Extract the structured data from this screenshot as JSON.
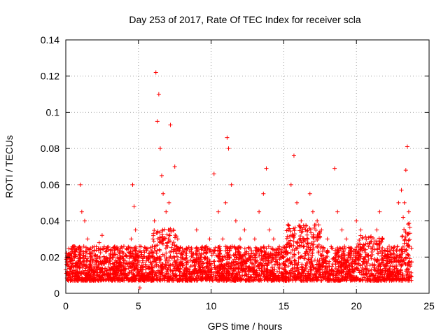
{
  "chart_data": {
    "type": "scatter",
    "title": "Day 253 of 2017, Rate Of TEC Index for receiver scla",
    "xlabel": "GPS time / hours",
    "ylabel": "ROTI / TECUs",
    "xlim": [
      0,
      25
    ],
    "ylim": [
      0,
      0.14
    ],
    "xticks": [
      0,
      5,
      10,
      15,
      20,
      25
    ],
    "xtick_labels": [
      "0",
      "5",
      "10",
      "15",
      "20",
      "25"
    ],
    "yticks": [
      0,
      0.02,
      0.04,
      0.06,
      0.08,
      0.1,
      0.12,
      0.14
    ],
    "ytick_labels": [
      "0",
      "0.02",
      "0.04",
      "0.06",
      "0.08",
      "0.1",
      "0.12",
      "0.14"
    ],
    "grid": true,
    "marker": "plus",
    "series": [
      {
        "name": "ROTI",
        "color": "#ff0000",
        "points": [
          [
            0.1,
            0.012
          ],
          [
            0.3,
            0.022
          ],
          [
            0.5,
            0.018
          ],
          [
            0.7,
            0.015
          ],
          [
            0.9,
            0.025
          ],
          [
            1.0,
            0.06
          ],
          [
            1.1,
            0.045
          ],
          [
            1.3,
            0.04
          ],
          [
            1.5,
            0.03
          ],
          [
            1.7,
            0.02
          ],
          [
            1.9,
            0.012
          ],
          [
            2.1,
            0.018
          ],
          [
            2.3,
            0.028
          ],
          [
            2.5,
            0.032
          ],
          [
            2.8,
            0.025
          ],
          [
            3.1,
            0.02
          ],
          [
            3.4,
            0.015
          ],
          [
            3.7,
            0.022
          ],
          [
            4.0,
            0.018
          ],
          [
            4.3,
            0.025
          ],
          [
            4.5,
            0.03
          ],
          [
            4.6,
            0.06
          ],
          [
            4.7,
            0.048
          ],
          [
            4.8,
            0.035
          ],
          [
            5.0,
            0.02
          ],
          [
            5.1,
            0.003
          ],
          [
            5.3,
            0.015
          ],
          [
            5.5,
            0.025
          ],
          [
            5.8,
            0.02
          ],
          [
            6.0,
            0.03
          ],
          [
            6.1,
            0.04
          ],
          [
            6.2,
            0.122
          ],
          [
            6.3,
            0.095
          ],
          [
            6.4,
            0.11
          ],
          [
            6.5,
            0.08
          ],
          [
            6.6,
            0.065
          ],
          [
            6.7,
            0.055
          ],
          [
            6.9,
            0.045
          ],
          [
            7.1,
            0.05
          ],
          [
            7.2,
            0.093
          ],
          [
            7.4,
            0.035
          ],
          [
            7.5,
            0.07
          ],
          [
            7.7,
            0.03
          ],
          [
            8.0,
            0.02
          ],
          [
            8.3,
            0.025
          ],
          [
            8.6,
            0.015
          ],
          [
            9.0,
            0.035
          ],
          [
            9.3,
            0.02
          ],
          [
            9.6,
            0.025
          ],
          [
            9.9,
            0.03
          ],
          [
            10.2,
            0.066
          ],
          [
            10.5,
            0.045
          ],
          [
            10.8,
            0.03
          ],
          [
            11.0,
            0.05
          ],
          [
            11.1,
            0.086
          ],
          [
            11.2,
            0.08
          ],
          [
            11.4,
            0.06
          ],
          [
            11.7,
            0.04
          ],
          [
            12.0,
            0.03
          ],
          [
            12.3,
            0.035
          ],
          [
            12.6,
            0.025
          ],
          [
            13.0,
            0.03
          ],
          [
            13.3,
            0.045
          ],
          [
            13.6,
            0.055
          ],
          [
            13.8,
            0.069
          ],
          [
            14.0,
            0.035
          ],
          [
            14.3,
            0.03
          ],
          [
            14.6,
            0.025
          ],
          [
            15.0,
            0.02
          ],
          [
            15.3,
            0.035
          ],
          [
            15.5,
            0.06
          ],
          [
            15.7,
            0.076
          ],
          [
            15.9,
            0.05
          ],
          [
            16.2,
            0.04
          ],
          [
            16.5,
            0.035
          ],
          [
            16.8,
            0.055
          ],
          [
            17.0,
            0.045
          ],
          [
            17.3,
            0.04
          ],
          [
            17.6,
            0.035
          ],
          [
            18.0,
            0.03
          ],
          [
            18.3,
            0.025
          ],
          [
            18.5,
            0.069
          ],
          [
            18.7,
            0.045
          ],
          [
            19.0,
            0.035
          ],
          [
            19.3,
            0.03
          ],
          [
            19.6,
            0.025
          ],
          [
            20.0,
            0.04
          ],
          [
            20.3,
            0.035
          ],
          [
            20.6,
            0.02
          ],
          [
            21.0,
            0.025
          ],
          [
            21.4,
            0.035
          ],
          [
            21.6,
            0.045
          ],
          [
            21.8,
            0.03
          ],
          [
            22.1,
            0.015
          ],
          [
            22.5,
            0.02
          ],
          [
            22.9,
            0.05
          ],
          [
            23.1,
            0.057
          ],
          [
            23.3,
            0.05
          ],
          [
            23.4,
            0.068
          ],
          [
            23.5,
            0.081
          ],
          [
            23.6,
            0.045
          ],
          [
            23.7,
            0.015
          ]
        ]
      }
    ],
    "seed": 253,
    "noise_points": 3600
  }
}
